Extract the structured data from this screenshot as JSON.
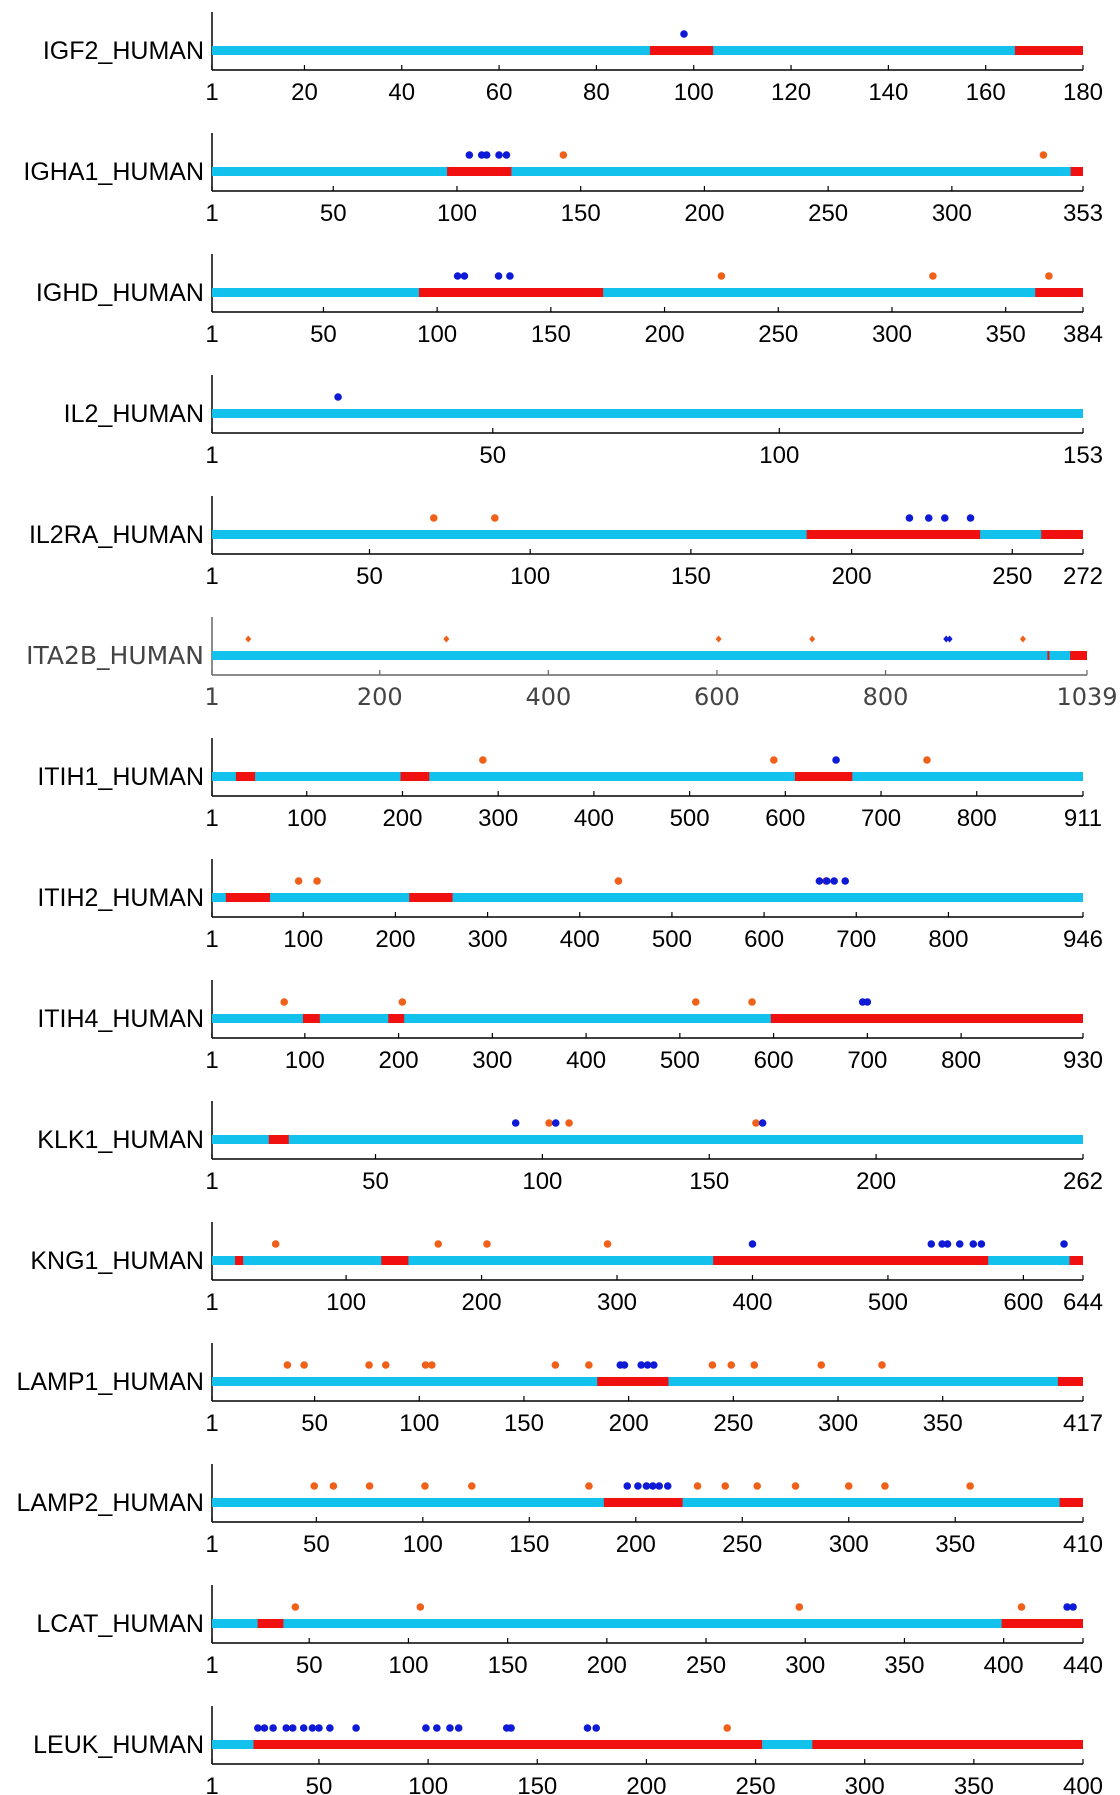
{
  "colors": {
    "domain_other": "#12c2ec",
    "domain_region": "#f01010",
    "site_blue": "#0f1ad6",
    "site_orange": "#f06018",
    "axis": "#000000"
  },
  "chart_data": [
    {
      "type": "track",
      "title": "IGF2_HUMAN",
      "length": 180,
      "ticks": [
        1,
        20,
        40,
        60,
        80,
        100,
        120,
        140,
        160,
        180
      ],
      "red_regions": [
        [
          91,
          104
        ],
        [
          166,
          180
        ]
      ],
      "blue_sites": [
        98
      ],
      "orange_sites": [],
      "site_marker": "dot"
    },
    {
      "type": "track",
      "title": "IGHA1_HUMAN",
      "length": 353,
      "ticks": [
        1,
        50,
        100,
        150,
        200,
        250,
        300,
        353
      ],
      "red_regions": [
        [
          96,
          122
        ],
        [
          348,
          353
        ]
      ],
      "blue_sites": [
        105,
        110,
        112,
        117,
        120
      ],
      "orange_sites": [
        143,
        337
      ],
      "site_marker": "dot"
    },
    {
      "type": "track",
      "title": "IGHD_HUMAN",
      "length": 384,
      "ticks": [
        1,
        50,
        100,
        150,
        200,
        250,
        300,
        350,
        384
      ],
      "red_regions": [
        [
          92,
          173
        ],
        [
          363,
          384
        ]
      ],
      "blue_sites": [
        109,
        112,
        127,
        132
      ],
      "orange_sites": [
        225,
        318,
        369
      ],
      "site_marker": "dot"
    },
    {
      "type": "track",
      "title": "IL2_HUMAN",
      "length": 153,
      "ticks": [
        1,
        50,
        100,
        153
      ],
      "red_regions": [],
      "blue_sites": [
        23
      ],
      "orange_sites": [],
      "site_marker": "dot"
    },
    {
      "type": "track",
      "title": "IL2RA_HUMAN",
      "length": 272,
      "ticks": [
        1,
        50,
        100,
        150,
        200,
        250,
        272
      ],
      "red_regions": [
        [
          186,
          240
        ],
        [
          259,
          272
        ]
      ],
      "blue_sites": [
        218,
        224,
        229,
        237
      ],
      "orange_sites": [
        70,
        89
      ],
      "site_marker": "dot"
    },
    {
      "type": "track",
      "title": "ITA2B_HUMAN",
      "length": 1039,
      "ticks": [
        1,
        200,
        400,
        600,
        800,
        1039
      ],
      "red_regions": [
        [
          992,
          994
        ],
        [
          1019,
          1039
        ]
      ],
      "blue_sites": [
        872,
        876
      ],
      "orange_sites": [
        44,
        279,
        602,
        713,
        963
      ],
      "site_marker": "diamond",
      "muted": true
    },
    {
      "type": "track",
      "title": "ITIH1_HUMAN",
      "length": 911,
      "ticks": [
        1,
        100,
        200,
        300,
        400,
        500,
        600,
        700,
        800,
        911
      ],
      "red_regions": [
        [
          26,
          46
        ],
        [
          198,
          228
        ],
        [
          610,
          670
        ]
      ],
      "blue_sites": [
        653
      ],
      "orange_sites": [
        284,
        588,
        748
      ],
      "site_marker": "dot"
    },
    {
      "type": "track",
      "title": "ITIH2_HUMAN",
      "length": 946,
      "ticks": [
        1,
        100,
        200,
        300,
        400,
        500,
        600,
        700,
        800,
        946
      ],
      "red_regions": [
        [
          16,
          64
        ],
        [
          215,
          262
        ]
      ],
      "blue_sites": [
        660,
        668,
        676,
        688
      ],
      "orange_sites": [
        95,
        115,
        442,
        667
      ],
      "site_marker": "dot"
    },
    {
      "type": "track",
      "title": "ITIH4_HUMAN",
      "length": 930,
      "ticks": [
        1,
        100,
        200,
        300,
        400,
        500,
        600,
        700,
        800,
        930
      ],
      "red_regions": [
        [
          98,
          116
        ],
        [
          189,
          206
        ],
        [
          597,
          930
        ]
      ],
      "blue_sites": [
        695,
        700
      ],
      "orange_sites": [
        78,
        204,
        517,
        577
      ],
      "site_marker": "dot"
    },
    {
      "type": "track",
      "title": "KLK1_HUMAN",
      "length": 262,
      "ticks": [
        1,
        50,
        100,
        150,
        200,
        262
      ],
      "red_regions": [
        [
          18,
          24
        ]
      ],
      "blue_sites": [
        92,
        104,
        166
      ],
      "orange_sites": [
        102,
        108,
        164
      ],
      "site_marker": "dot"
    },
    {
      "type": "track",
      "title": "KNG1_HUMAN",
      "length": 644,
      "ticks": [
        1,
        100,
        200,
        300,
        400,
        500,
        600,
        644
      ],
      "red_regions": [
        [
          18,
          24
        ],
        [
          126,
          146
        ],
        [
          371,
          574
        ],
        [
          634,
          644
        ]
      ],
      "blue_sites": [
        400,
        532,
        540,
        544,
        553,
        563,
        569,
        630
      ],
      "orange_sites": [
        48,
        168,
        204,
        293
      ],
      "site_marker": "dot"
    },
    {
      "type": "track",
      "title": "LAMP1_HUMAN",
      "length": 417,
      "ticks": [
        1,
        50,
        100,
        150,
        200,
        250,
        300,
        350,
        417
      ],
      "red_regions": [
        [
          185,
          219
        ],
        [
          405,
          417
        ]
      ],
      "blue_sites": [
        196,
        198,
        206,
        209,
        212
      ],
      "orange_sites": [
        37,
        45,
        76,
        84,
        103,
        106,
        165,
        181,
        240,
        249,
        260,
        292,
        321
      ],
      "site_marker": "dot"
    },
    {
      "type": "track",
      "title": "LAMP2_HUMAN",
      "length": 410,
      "ticks": [
        1,
        50,
        100,
        150,
        200,
        250,
        300,
        350,
        410
      ],
      "red_regions": [
        [
          185,
          222
        ],
        [
          399,
          410
        ]
      ],
      "blue_sites": [
        196,
        201,
        205,
        208,
        211,
        215
      ],
      "orange_sites": [
        49,
        58,
        75,
        101,
        123,
        178,
        229,
        242,
        257,
        275,
        300,
        317,
        357
      ],
      "site_marker": "dot"
    },
    {
      "type": "track",
      "title": "LCAT_HUMAN",
      "length": 440,
      "ticks": [
        1,
        50,
        100,
        150,
        200,
        250,
        300,
        350,
        400,
        440
      ],
      "red_regions": [
        [
          24,
          37
        ],
        [
          399,
          440
        ]
      ],
      "blue_sites": [
        432,
        435
      ],
      "orange_sites": [
        43,
        106,
        297,
        409
      ],
      "site_marker": "dot"
    },
    {
      "type": "track",
      "title": "LEUK_HUMAN",
      "length": 400,
      "ticks": [
        1,
        50,
        100,
        150,
        200,
        250,
        300,
        350,
        400
      ],
      "red_regions": [
        [
          20,
          253
        ],
        [
          276,
          400
        ]
      ],
      "blue_sites": [
        22,
        25,
        29,
        35,
        38,
        43,
        47,
        50,
        55,
        67,
        99,
        104,
        110,
        114,
        136,
        138,
        173,
        177
      ],
      "orange_sites": [
        237
      ],
      "site_marker": "dot"
    }
  ]
}
